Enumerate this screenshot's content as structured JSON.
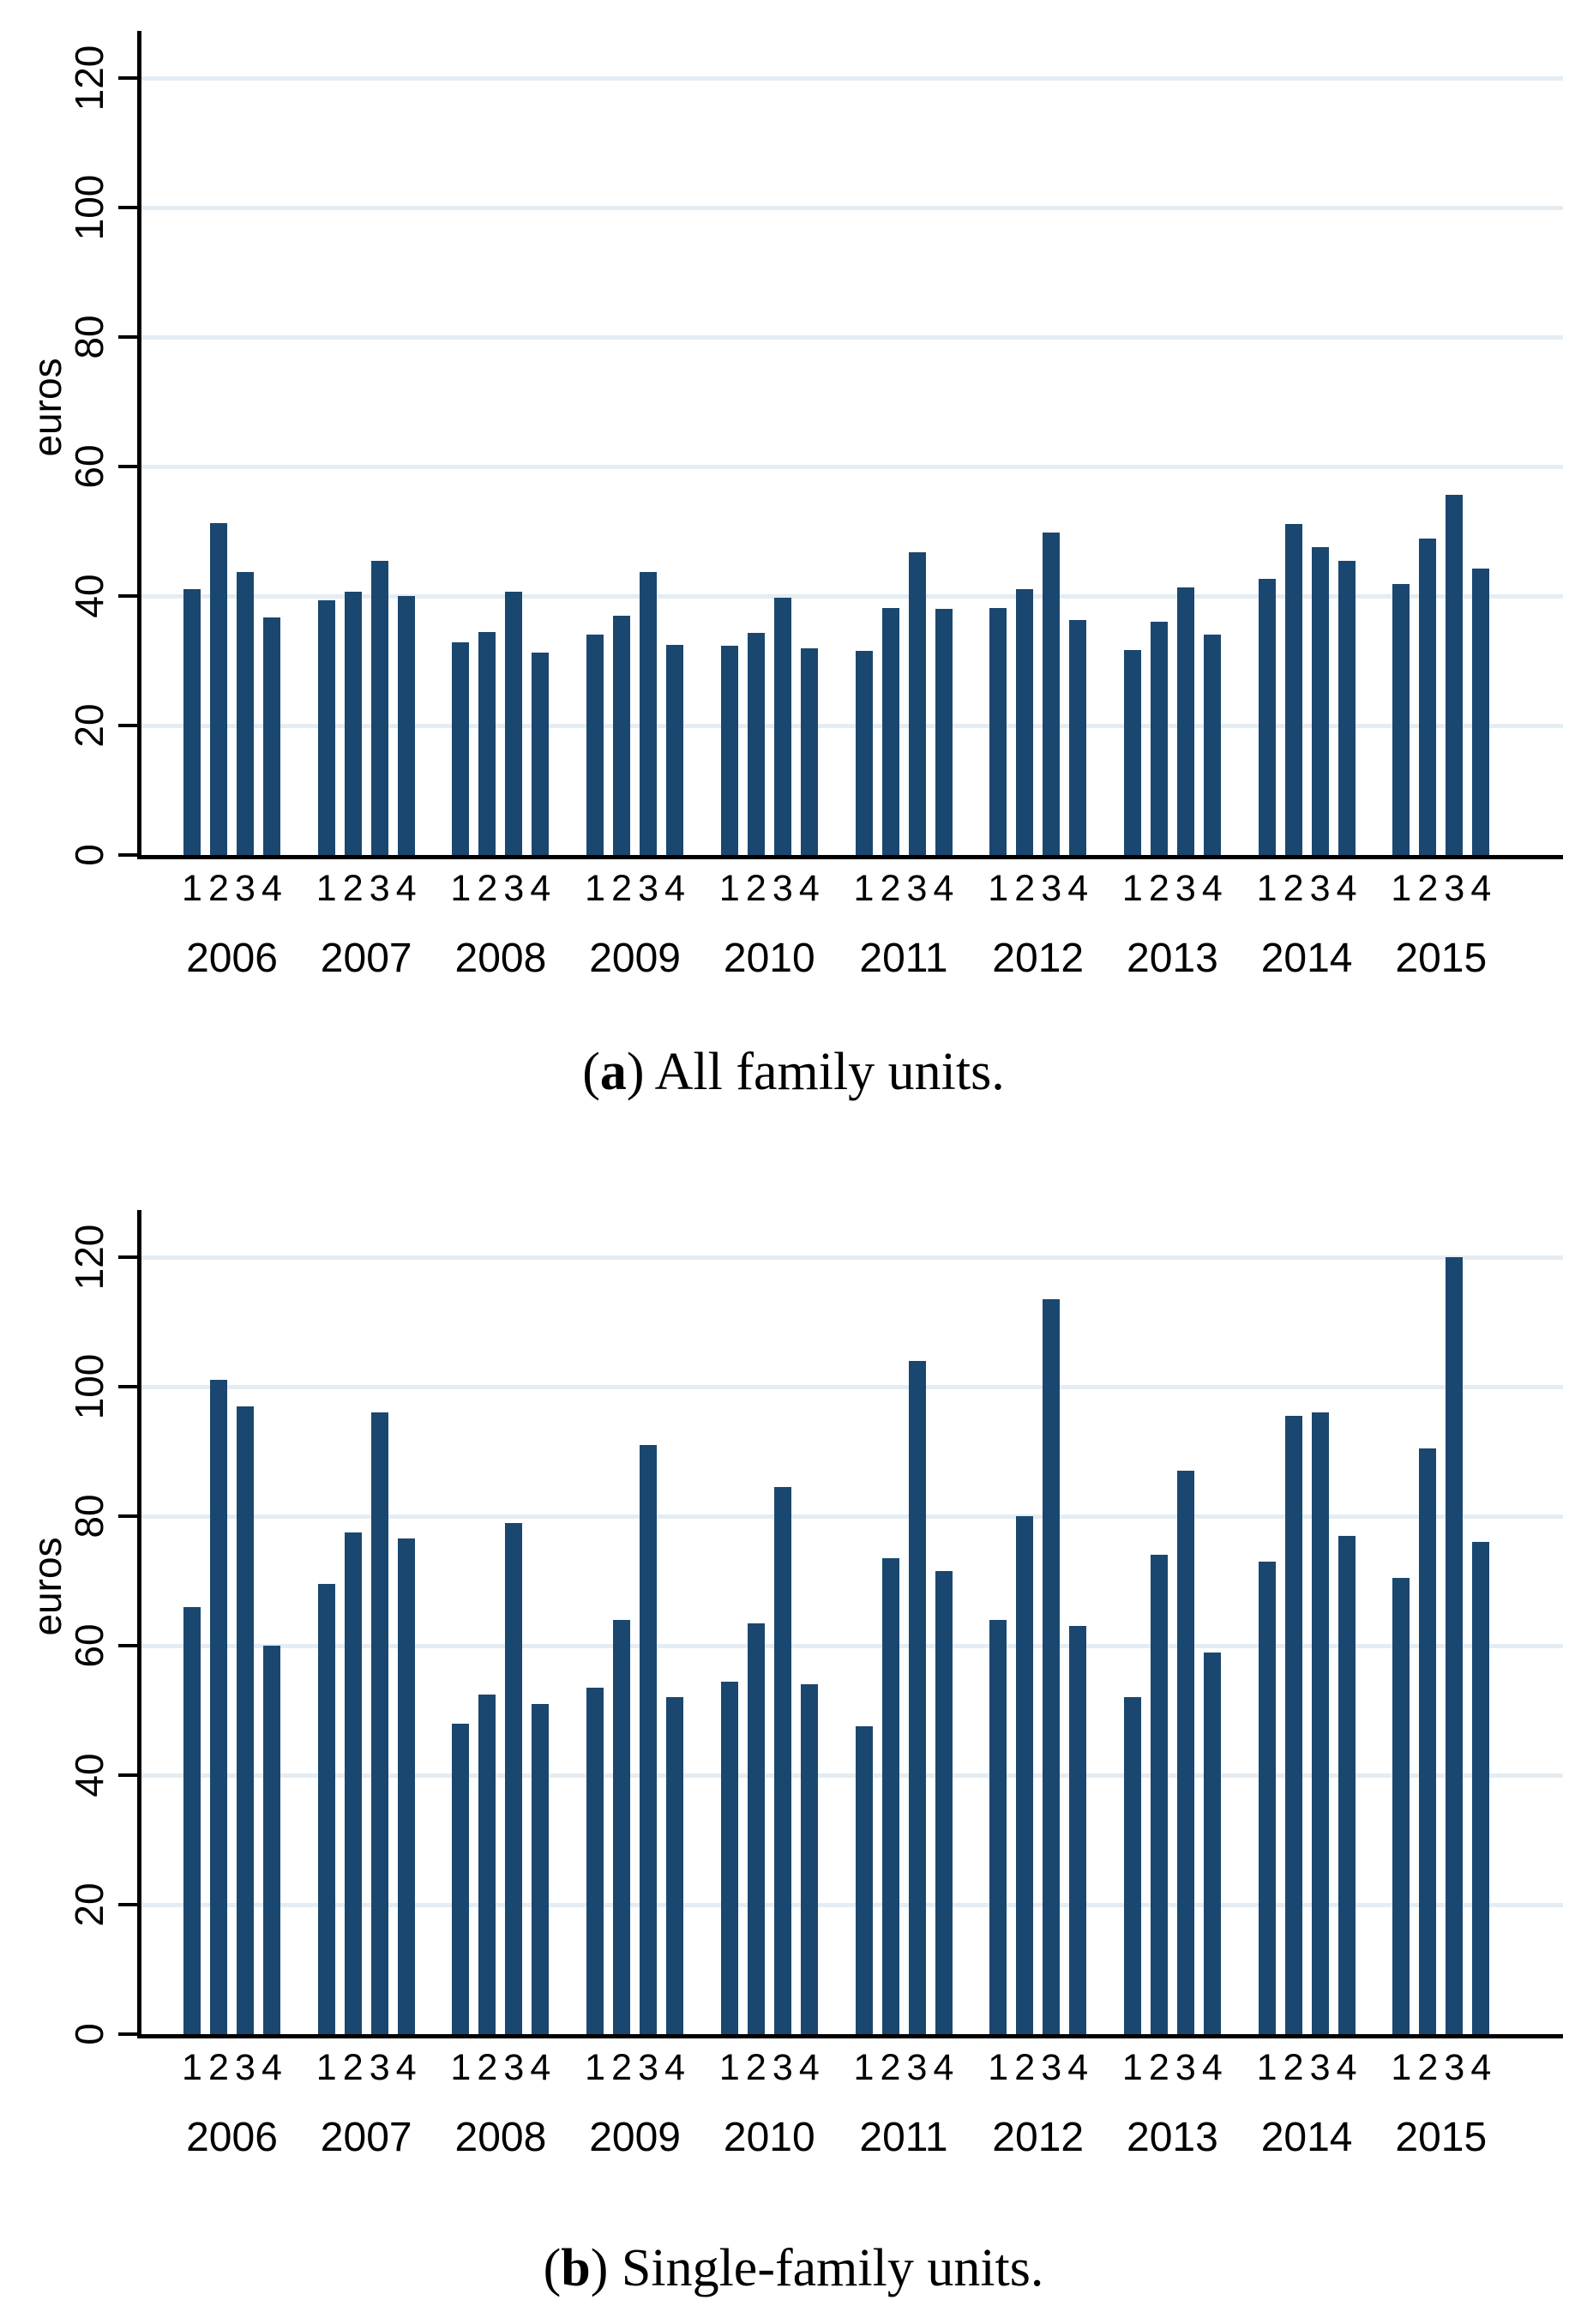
{
  "colors": {
    "bar": "#1a476f",
    "gridline": "#e4edf3",
    "axis": "#000000",
    "background": "#ffffff"
  },
  "chart_data": [
    {
      "type": "bar",
      "panel": "a",
      "caption_letter": "a",
      "caption_rest": " All family units.",
      "ylabel": "euros",
      "ylim": [
        0,
        120
      ],
      "yticks": [
        0,
        20,
        40,
        60,
        80,
        100,
        120
      ],
      "grid": true,
      "legend": "none",
      "quarters": [
        "1",
        "2",
        "3",
        "4"
      ],
      "categories": [
        "2006",
        "2007",
        "2008",
        "2009",
        "2010",
        "2011",
        "2012",
        "2013",
        "2014",
        "2015"
      ],
      "series": [
        {
          "name": "euros",
          "values_by_year": {
            "2006": [
              41.0,
              51.3,
              43.7,
              36.7
            ],
            "2007": [
              39.4,
              40.7,
              45.4,
              40.0
            ],
            "2008": [
              32.8,
              34.4,
              40.6,
              31.2
            ],
            "2009": [
              34.0,
              37.0,
              43.7,
              32.5
            ],
            "2010": [
              32.3,
              34.3,
              39.8,
              31.9
            ],
            "2011": [
              31.5,
              38.2,
              46.7,
              38.0
            ],
            "2012": [
              38.2,
              41.1,
              49.8,
              36.3
            ],
            "2013": [
              31.7,
              36.0,
              41.3,
              34.0
            ],
            "2014": [
              42.7,
              51.1,
              47.5,
              45.4
            ],
            "2015": [
              41.9,
              48.9,
              55.6,
              44.3
            ]
          }
        }
      ]
    },
    {
      "type": "bar",
      "panel": "b",
      "caption_letter": "b",
      "caption_rest": " Single-family units.",
      "ylabel": "euros",
      "ylim": [
        0,
        120
      ],
      "yticks": [
        0,
        20,
        40,
        60,
        80,
        100,
        120
      ],
      "grid": true,
      "legend": "none",
      "quarters": [
        "1",
        "2",
        "3",
        "4"
      ],
      "categories": [
        "2006",
        "2007",
        "2008",
        "2009",
        "2010",
        "2011",
        "2012",
        "2013",
        "2014",
        "2015"
      ],
      "series": [
        {
          "name": "euros",
          "values_by_year": {
            "2006": [
              66.0,
              101.0,
              97.0,
              60.0
            ],
            "2007": [
              69.5,
              77.5,
              96.0,
              76.5
            ],
            "2008": [
              48.0,
              52.5,
              79.0,
              51.0
            ],
            "2009": [
              53.5,
              64.0,
              91.0,
              52.0
            ],
            "2010": [
              54.5,
              63.5,
              84.5,
              54.0
            ],
            "2011": [
              47.5,
              73.5,
              104.0,
              71.5
            ],
            "2012": [
              64.0,
              80.0,
              113.5,
              63.0
            ],
            "2013": [
              52.0,
              74.0,
              87.0,
              59.0
            ],
            "2014": [
              73.0,
              95.5,
              96.0,
              77.0
            ],
            "2015": [
              70.5,
              90.5,
              120.0,
              76.0
            ]
          }
        }
      ]
    }
  ]
}
